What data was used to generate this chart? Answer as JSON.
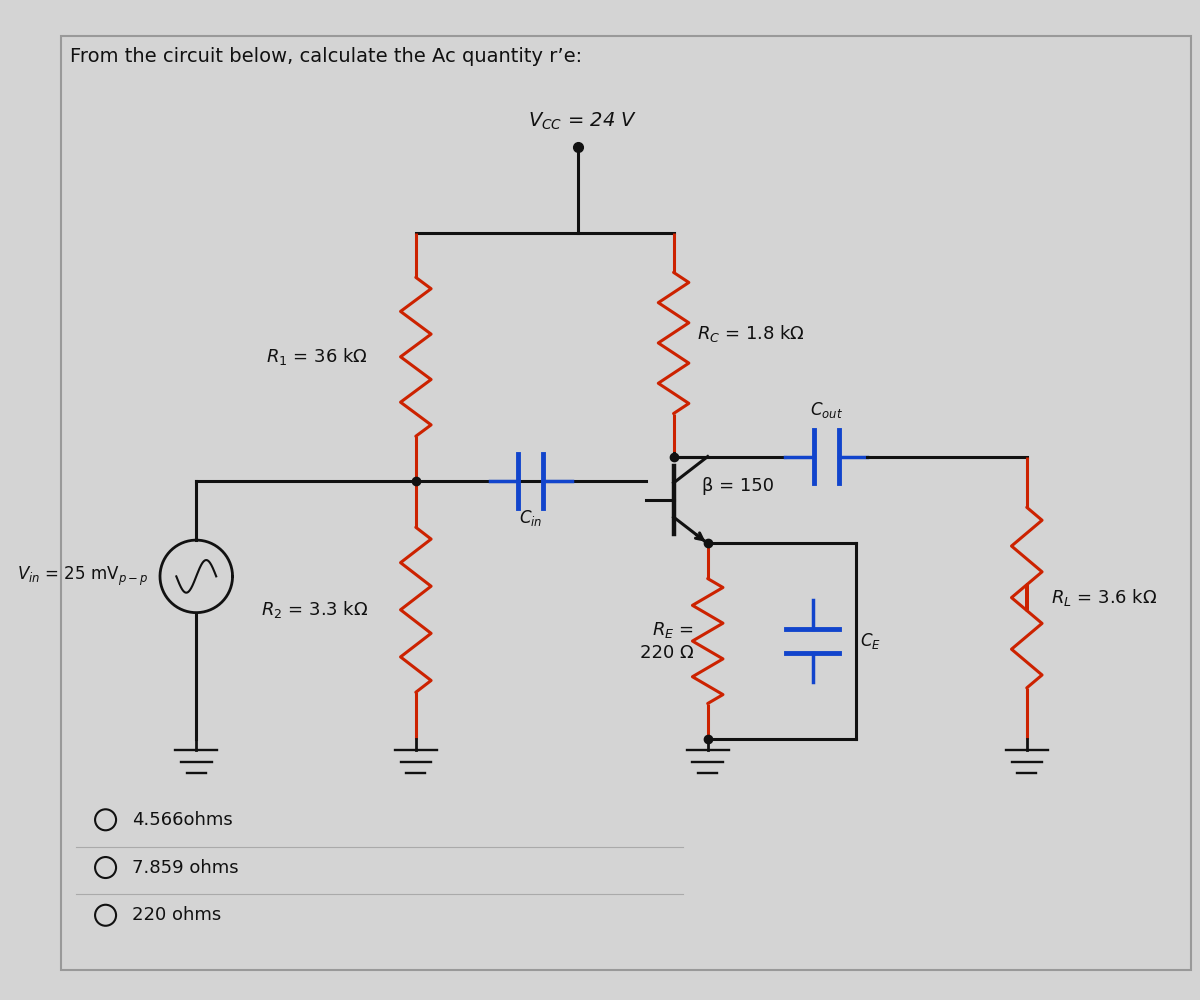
{
  "title": "From the circuit below, calculate the Ac quantity r’e:",
  "bg_color": "#d4d4d4",
  "vcc_label": "$V_{CC}$ = 24 V",
  "r1_label": "$R_1$ = 36 kΩ",
  "r2_label": "$R_2$ = 3.3 kΩ",
  "rc_label": "$R_C$ = 1.8 kΩ",
  "re_label": "$R_E$ =\n220 Ω",
  "rl_label": "$R_L$ = 3.6 kΩ",
  "beta_label": "β = 150",
  "cin_label": "$C_{in}$",
  "cout_label": "$C_{out}$",
  "ce_label": "$C_E$",
  "vin_label": "$V_{in}$ = 25 mV$_{p-p}$",
  "wire_color": "#111111",
  "resistor_color": "#cc2200",
  "cap_color": "#1144cc",
  "ground_color": "#111111",
  "options": [
    {
      "label": "4.566ohms"
    },
    {
      "label": "7.859 ohms"
    },
    {
      "label": "220 ohms"
    }
  ]
}
